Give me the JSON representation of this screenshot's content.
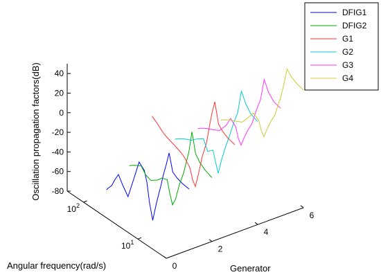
{
  "chart_data": {
    "type": "line",
    "title": "",
    "xlabel": "Generator",
    "ylabel": "Angular frequency(rad/s)",
    "zlabel": "Oscillation propagation factors(dB)",
    "x_ticks": [
      "0",
      "2",
      "4",
      "6"
    ],
    "y_tick_labels": [
      {
        "base": "10",
        "exp": "1"
      },
      {
        "base": "10",
        "exp": "2"
      }
    ],
    "z_ticks": [
      "40",
      "20",
      "0",
      "-20",
      "-40",
      "-60",
      "-80"
    ],
    "xlim": [
      0,
      6
    ],
    "ylim": [
      3,
      200
    ],
    "zlim": [
      -80,
      50
    ],
    "y_scale": "log",
    "legend_placement": "top-right",
    "series": [
      {
        "name": "DFIG1",
        "color": "#0000ff",
        "x": 1,
        "y": [
          3,
          4,
          5,
          6,
          7,
          8,
          9,
          10,
          12,
          14,
          16,
          18,
          20,
          25,
          30,
          40,
          50,
          60,
          70,
          80,
          90,
          100
        ],
        "z": [
          -18,
          -17,
          -15,
          -12,
          5,
          -10,
          -22,
          -35,
          -55,
          -75,
          -60,
          -40,
          -30,
          -25,
          -42,
          -68,
          -60,
          -52,
          -60,
          -68,
          -72,
          -76
        ]
      },
      {
        "name": "DFIG2",
        "color": "#00aa00",
        "x": 2,
        "y": [
          3,
          4,
          5,
          6,
          7,
          8,
          9,
          10,
          12,
          14,
          16,
          18,
          20,
          25,
          30,
          40,
          50,
          60,
          70,
          80,
          90,
          100
        ],
        "z": [
          -15,
          -12,
          -8,
          -2,
          18,
          -5,
          -18,
          -30,
          -45,
          -62,
          -70,
          -60,
          -48,
          -50,
          -55,
          -60,
          -58,
          -52,
          -54,
          -56,
          -58,
          -60
        ]
      },
      {
        "name": "G1",
        "color": "#ff3333",
        "x": 3,
        "y": [
          3,
          4,
          5,
          6,
          7,
          8,
          9,
          10,
          12,
          14,
          16,
          18,
          20,
          25,
          30,
          40,
          50,
          60,
          70,
          80,
          90,
          100
        ],
        "z": [
          10,
          12,
          15,
          20,
          40,
          25,
          8,
          -8,
          -25,
          -45,
          -60,
          -55,
          -45,
          -38,
          -35,
          -32,
          -30,
          -28,
          -25,
          -22,
          -20,
          -18
        ]
      },
      {
        "name": "G2",
        "color": "#00cccc",
        "x": 4,
        "y": [
          3,
          4,
          5,
          6,
          7,
          8,
          9,
          10,
          12,
          14,
          16,
          18,
          20,
          25,
          30,
          40,
          50,
          60,
          70,
          80,
          90,
          100
        ],
        "z": [
          25,
          28,
          35,
          45,
          20,
          10,
          0,
          -10,
          -25,
          -40,
          -55,
          -45,
          -35,
          -40,
          -30,
          -35,
          -40,
          -42,
          -44,
          -46,
          -48,
          -50
        ]
      },
      {
        "name": "G3",
        "color": "#ff33ff",
        "x": 5,
        "y": [
          3,
          4,
          5,
          6,
          7,
          8,
          9,
          10,
          12,
          14,
          16,
          18,
          20,
          25,
          30,
          40,
          50,
          60,
          70,
          80,
          90,
          100
        ],
        "z": [
          30,
          32,
          38,
          48,
          25,
          15,
          5,
          -5,
          -15,
          -25,
          -35,
          -30,
          -20,
          -15,
          -25,
          -35,
          -38,
          -40,
          -42,
          -44,
          -46,
          -48
        ]
      },
      {
        "name": "G4",
        "color": "#cccc33",
        "x": 6,
        "y": [
          3,
          4,
          5,
          6,
          7,
          8,
          9,
          10,
          12,
          14,
          16,
          18,
          20,
          25,
          30,
          40,
          50,
          60,
          70,
          80,
          90,
          100
        ],
        "z": [
          40,
          42,
          45,
          50,
          30,
          15,
          5,
          -5,
          -15,
          -25,
          -35,
          -30,
          -22,
          -18,
          -25,
          -35,
          -38,
          -40,
          -42,
          -44,
          -46,
          -48
        ]
      }
    ]
  }
}
